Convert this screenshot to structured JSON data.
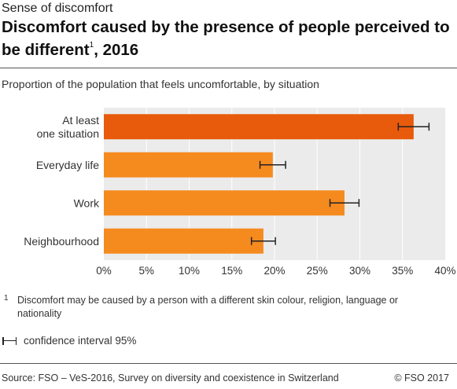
{
  "header": {
    "kicker": "Sense of discomfort",
    "title": "Discomfort caused by the presence of people perceived to be different",
    "title_footnote_mark": "1",
    "title_year": ", 2016",
    "subtitle": "Proportion of the population that feels uncomfortable, by situation"
  },
  "chart_data": {
    "type": "bar",
    "orientation": "horizontal",
    "categories": [
      "At least one situation",
      "Everyday life",
      "Work",
      "Neighbourhood"
    ],
    "category_lines": [
      [
        "At least",
        "one situation"
      ],
      [
        "Everyday life"
      ],
      [
        "Work"
      ],
      [
        "Neighbourhood"
      ]
    ],
    "values": [
      36.3,
      19.8,
      28.2,
      18.7
    ],
    "ci_low": [
      34.5,
      18.3,
      26.5,
      17.3
    ],
    "ci_high": [
      38.1,
      21.3,
      29.9,
      20.1
    ],
    "xlim": [
      0,
      40
    ],
    "xticks": [
      0,
      5,
      10,
      15,
      20,
      25,
      30,
      35,
      40
    ],
    "tick_suffix": "%",
    "grid": true,
    "colors": {
      "highlight": "#e85a0c",
      "bar": "#f58a1f",
      "plot_bg": "#ebebeb",
      "grid": "#ffffff",
      "ci": "#222222"
    }
  },
  "footnote": {
    "mark": "1",
    "text": "Discomfort may be caused by a person with a different skin colour, religion, language or nationality"
  },
  "legend": {
    "ci_label": "confidence interval 95%"
  },
  "footer": {
    "source": "Source: FSO – VeS-2016, Survey on diversity and coexistence in Switzerland",
    "copyright": "© FSO 2017"
  }
}
